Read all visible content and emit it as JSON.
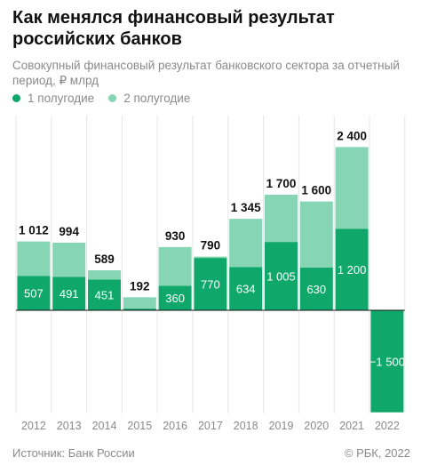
{
  "header": {
    "title": "Как менялся финансовый результат российских банков",
    "subtitle": "Совокупный финансовый результат банковского сектора за отчетный период, ₽ млрд"
  },
  "legend": {
    "items": [
      {
        "label": "1 полугодие",
        "color": "#10a86a"
      },
      {
        "label": "2 полугодие",
        "color": "#86d6b6"
      }
    ]
  },
  "footer": {
    "source": "Источник: Банк России",
    "credit": "© РБК, 2022"
  },
  "chart_data": {
    "type": "bar",
    "stacked": true,
    "categories": [
      "2012",
      "2013",
      "2014",
      "2015",
      "2016",
      "2017",
      "2018",
      "2019",
      "2020",
      "2021",
      "2022"
    ],
    "series": [
      {
        "name": "1 полугодие",
        "color": "#10a86a",
        "values": [
          507,
          491,
          451,
          25,
          360,
          770,
          634,
          1005,
          630,
          1200,
          -1500
        ]
      },
      {
        "name": "2 полугодие",
        "color": "#86d6b6",
        "values": [
          505,
          503,
          138,
          167,
          570,
          20,
          711,
          695,
          970,
          1200,
          null
        ]
      }
    ],
    "totals": [
      1012,
      994,
      589,
      192,
      930,
      790,
      1345,
      1700,
      1600,
      2400,
      null
    ],
    "total_labels": [
      "1 012",
      "994",
      "589",
      "192",
      "930",
      "790",
      "1 345",
      "1 700",
      "1 600",
      "2 400",
      ""
    ],
    "h1_labels": [
      "507",
      "491",
      "451",
      "",
      "360",
      "770",
      "634",
      "1 005",
      "630",
      "1 200",
      "−1 500"
    ],
    "ylim": [
      -1500,
      2400
    ],
    "grid": "vertical"
  }
}
